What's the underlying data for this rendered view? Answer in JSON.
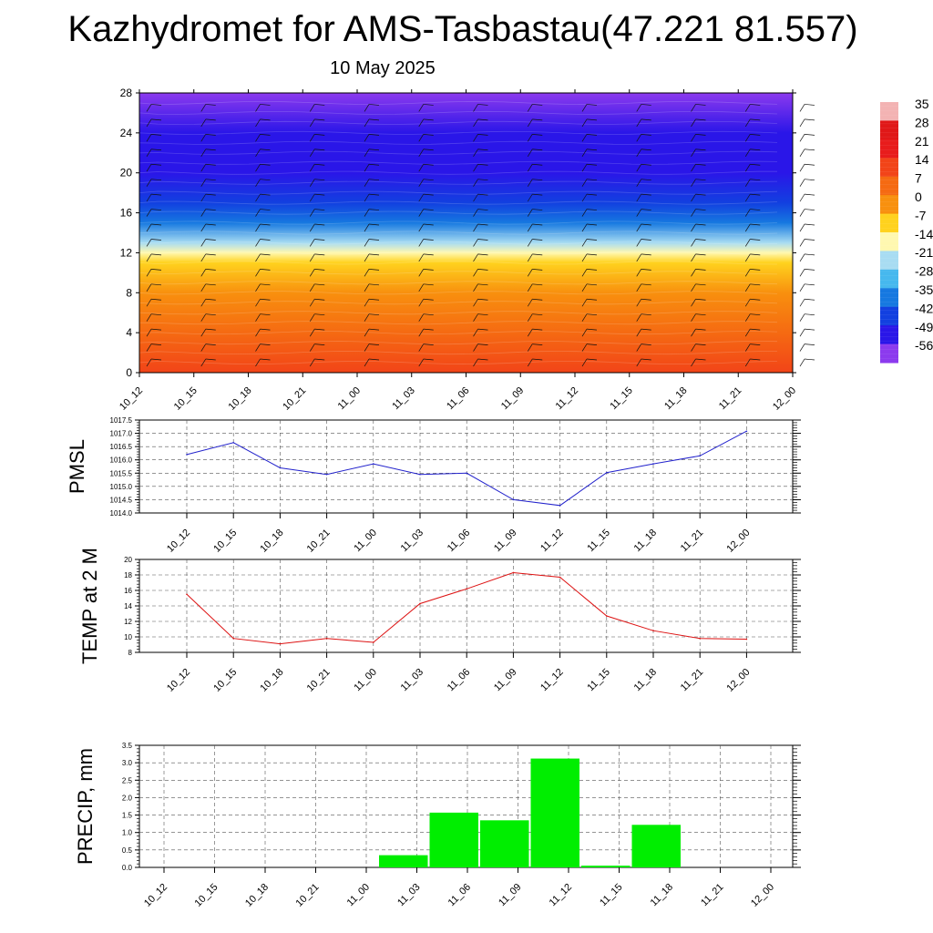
{
  "page": {
    "title": "Kazhydromet for AMS-Tasbastau(47.221 81.557)",
    "subtitle": "10 May 2025"
  },
  "chart_data": [
    {
      "type": "heatmap",
      "name": "cross-section",
      "xlabel": "",
      "ylabel": "",
      "ylim": [
        0,
        28
      ],
      "yticks": [
        0,
        4,
        8,
        12,
        16,
        20,
        24,
        28
      ],
      "categories": [
        "10_12",
        "10_15",
        "10_18",
        "10_21",
        "11_00",
        "11_03",
        "11_06",
        "11_09",
        "11_12",
        "11_15",
        "11_18",
        "11_21",
        "12_00"
      ],
      "colorbar_labels": [
        "35",
        "28",
        "21",
        "14",
        "7",
        "0",
        "-7",
        "-14",
        "-21",
        "-28",
        "-35",
        "-42",
        "-49",
        "-56"
      ],
      "colorbar_colors": [
        "#f3b3b3",
        "#e01818",
        "#e81c1c",
        "#f24418",
        "#f56a12",
        "#f8900e",
        "#ffd21e",
        "#fff8b0",
        "#a8dcf2",
        "#46b8ee",
        "#1678e0",
        "#1240e0",
        "#2a16e8",
        "#8c3aee"
      ],
      "levels_temperature_c": [
        {
          "height": 0,
          "value": 14
        },
        {
          "height": 4,
          "value": 7
        },
        {
          "height": 8,
          "value": 0
        },
        {
          "height": 11,
          "value": -7
        },
        {
          "height": 12,
          "value": -14
        },
        {
          "height": 13,
          "value": -21
        },
        {
          "height": 15,
          "value": -35
        },
        {
          "height": 17,
          "value": -42
        },
        {
          "height": 20,
          "value": -49
        },
        {
          "height": 24,
          "value": -49
        },
        {
          "height": 28,
          "value": -56
        }
      ]
    },
    {
      "type": "line",
      "name": "pmsl",
      "ylabel": "PMSL",
      "ylim": [
        1014.0,
        1017.5
      ],
      "yticks": [
        "1014.0",
        "1014.5",
        "1015.0",
        "1015.5",
        "1016.0",
        "1016.5",
        "1017.0",
        "1017.5"
      ],
      "categories": [
        "10_12",
        "10_15",
        "10_18",
        "10_21",
        "11_00",
        "11_03",
        "11_06",
        "11_09",
        "11_12",
        "11_15",
        "11_18",
        "11_21",
        "12_00"
      ],
      "values": [
        1016.2,
        1016.65,
        1015.7,
        1015.45,
        1015.85,
        1015.45,
        1015.5,
        1014.5,
        1014.28,
        1015.52,
        1015.85,
        1016.15,
        1017.08
      ],
      "color": "#2222cc"
    },
    {
      "type": "line",
      "name": "temp2m",
      "ylabel": "TEMP at 2 M",
      "ylim": [
        8,
        20
      ],
      "yticks": [
        "8",
        "10",
        "12",
        "14",
        "16",
        "18",
        "20"
      ],
      "categories": [
        "10_12",
        "10_15",
        "10_18",
        "10_21",
        "11_00",
        "11_03",
        "11_06",
        "11_09",
        "11_12",
        "11_15",
        "11_18",
        "11_21",
        "12_00"
      ],
      "values": [
        15.5,
        9.8,
        9.1,
        9.8,
        9.3,
        14.3,
        16.2,
        18.3,
        17.7,
        12.7,
        10.8,
        9.8,
        9.7
      ],
      "color": "#dd1111"
    },
    {
      "type": "bar",
      "name": "precip",
      "ylabel": "PRECIP, mm",
      "ylim": [
        0,
        3.5
      ],
      "yticks": [
        "0.0",
        "0.5",
        "1.0",
        "1.5",
        "2.0",
        "2.5",
        "3.0",
        "3.5"
      ],
      "categories": [
        "10_12",
        "10_15",
        "10_18",
        "10_21",
        "11_00",
        "11_03",
        "11_06",
        "11_09",
        "11_12",
        "11_15",
        "11_18",
        "11_21",
        "12_00"
      ],
      "values": [
        0,
        0,
        0,
        0,
        0.35,
        1.57,
        1.35,
        3.12,
        0.05,
        1.22,
        0,
        0,
        0
      ],
      "color": "#00ee00"
    }
  ]
}
